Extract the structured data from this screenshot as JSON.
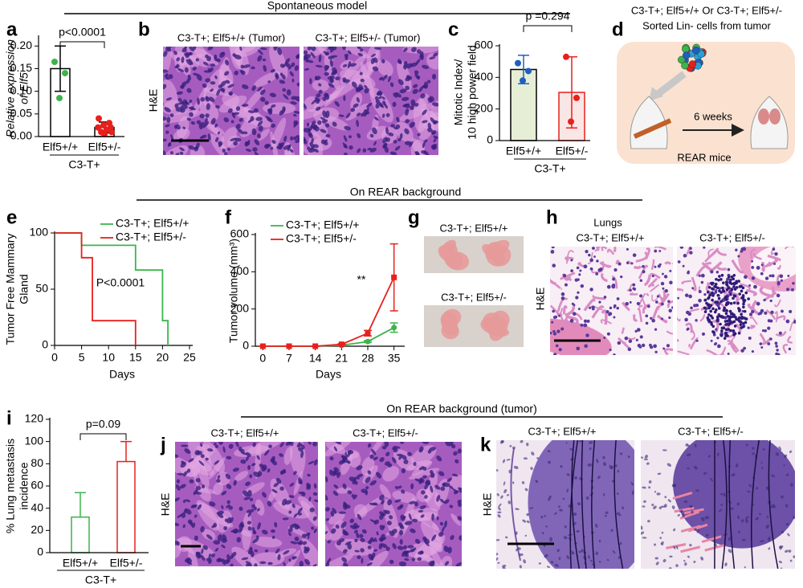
{
  "figure": {
    "panel_letters": [
      "a",
      "b",
      "c",
      "d",
      "e",
      "f",
      "g",
      "h",
      "i",
      "j",
      "k"
    ],
    "header_spontaneous": "Spontaneous model",
    "header_rear": "On REAR background",
    "header_rear_tumor": "On REAR background (tumor)",
    "b": {
      "captions": [
        "C3-T+; Elf5+/+ (Tumor)",
        "C3-T+; Elf5+/- (Tumor)"
      ],
      "stain": "H&E"
    },
    "d": {
      "genotypes": "C3-T+; Elf5+/+ Or C3-T+; Elf5+/-",
      "cells": "Sorted Lin- cells from tumor",
      "duration": "6 weeks",
      "host": "REAR mice"
    },
    "g": {
      "captions": [
        "C3-T+; Elf5+/+",
        "C3-T+; Elf5+/-"
      ]
    },
    "h": {
      "title": "Lungs",
      "captions": [
        "C3-T+; Elf5+/+",
        "C3-T+; Elf5+/-"
      ],
      "stain": "H&E"
    },
    "j": {
      "captions": [
        "C3-T+; Elf5+/+",
        "C3-T+; Elf5+/-"
      ],
      "stain": "H&E"
    },
    "k": {
      "captions": [
        "C3-T+; Elf5+/+",
        "C3-T+; Elf5+/-"
      ],
      "stain": "H&E"
    }
  },
  "chart_data": [
    {
      "type": "bar",
      "ylabel": [
        "Relative expression",
        "of Elf5"
      ],
      "ylabel_style": "italic",
      "categories": [
        "Elf5+/+",
        "Elf5+/-"
      ],
      "group_label": "C3-T+",
      "values": [
        0.15,
        0.02
      ],
      "errors": [
        0.05,
        0.012
      ],
      "points": [
        [
          0.165,
          0.14,
          0.085
        ],
        [
          0.04,
          0.03,
          0.025,
          0.02,
          0.02,
          0.015,
          0.01,
          0.01,
          0.005
        ]
      ],
      "colors": [
        "#3cb44b",
        "#e8201c"
      ],
      "bar_fill": [
        "#ffffff",
        "#ffffff"
      ],
      "bar_stroke": [
        "#000000",
        "#000000"
      ],
      "error_colors": [
        "#000000",
        "#000000"
      ],
      "error_bars": "both",
      "ylim": [
        0,
        0.22
      ],
      "yticks": [
        {
          "value": 0,
          "label": "0.00"
        },
        {
          "value": 0.05,
          "label": "0.05"
        },
        {
          "value": 0.1,
          "label": "0.10"
        },
        {
          "value": 0.15,
          "label": "0.15"
        },
        {
          "value": 0.2,
          "label": "0.20"
        }
      ],
      "annotation": "p<0.0001"
    },
    {
      "type": "bar",
      "ylabel": [
        "Mitotic Index/",
        "10 high power field"
      ],
      "ylabel_style": "normal",
      "categories": [
        "Elf5+/+",
        "Elf5+/-"
      ],
      "group_label": "C3-T+",
      "values": [
        450,
        305
      ],
      "errors": [
        90,
        225
      ],
      "points": [
        [
          490,
          440,
          380
        ],
        [
          530,
          270,
          120
        ]
      ],
      "colors": [
        "#1f5fbf",
        "#e8201c"
      ],
      "bar_fill": [
        "#e6efd6",
        "#fbe6e6"
      ],
      "bar_stroke": [
        "#000000",
        "#e8201c"
      ],
      "error_colors": [
        "#1f5fbf",
        "#e8201c"
      ],
      "error_bars": "both",
      "ylim": [
        0,
        600
      ],
      "yticks": [
        0,
        200,
        400,
        600
      ],
      "annotation": "p =0.294"
    },
    {
      "type": "step",
      "ylabel": [
        "Tumor Free Mammary",
        "Gland"
      ],
      "xlabel": "Days",
      "series": [
        {
          "name": "C3-T+; Elf5+/+",
          "color": "#3cb44b",
          "x": [
            0,
            5,
            15,
            20,
            21
          ],
          "values": [
            100,
            89,
            67,
            22,
            0
          ]
        },
        {
          "name": "C3-T+; Elf5+/-",
          "color": "#e8201c",
          "x": [
            0,
            5,
            7,
            15
          ],
          "values": [
            100,
            78,
            22,
            0
          ]
        }
      ],
      "xlim": [
        0,
        25
      ],
      "xticks": [
        0,
        5,
        10,
        15,
        20,
        25
      ],
      "ylim": [
        0,
        100
      ],
      "yticks": [
        0,
        50,
        100
      ],
      "annotation": "P<0.0001"
    },
    {
      "type": "line",
      "ylabel": [
        "Tumor volume (mm³)"
      ],
      "xlabel": "Days",
      "x": [
        0,
        7,
        14,
        21,
        28,
        35
      ],
      "series": [
        {
          "name": "C3-T+; Elf5+/+",
          "color": "#3cb44b",
          "marker": "circle",
          "values": [
            0,
            0,
            0,
            5,
            25,
            100
          ],
          "errors": [
            0,
            0,
            0,
            2,
            5,
            25
          ]
        },
        {
          "name": "C3-T+; Elf5+/-",
          "color": "#e8201c",
          "marker": "square",
          "values": [
            0,
            0,
            0,
            10,
            70,
            370
          ],
          "errors": [
            0,
            0,
            0,
            3,
            15,
            180
          ]
        }
      ],
      "xlim": [
        -2,
        37
      ],
      "xticks": [
        0,
        7,
        14,
        21,
        28,
        35
      ],
      "ylim": [
        0,
        600
      ],
      "yticks": [
        0,
        200,
        400,
        600
      ],
      "annotation": "**"
    },
    {
      "type": "bar",
      "ylabel": [
        "% Lung metastasis",
        "incidence"
      ],
      "ylabel_style": "normal",
      "categories": [
        "Elf5+/+",
        "Elf5+/-"
      ],
      "group_label": "C3-T+",
      "values": [
        32,
        82
      ],
      "errors": [
        22,
        18
      ],
      "colors": [
        "#3cb44b",
        "#e8201c"
      ],
      "bar_fill": [
        "#ffffff",
        "#ffffff"
      ],
      "bar_stroke": [
        "#3cb44b",
        "#e8201c"
      ],
      "error_colors": [
        "#3cb44b",
        "#e8201c"
      ],
      "error_bars": "upper",
      "ylim": [
        0,
        120
      ],
      "yticks": [
        0,
        20,
        40,
        60,
        80,
        100,
        120
      ],
      "annotation": "p=0.09"
    }
  ]
}
